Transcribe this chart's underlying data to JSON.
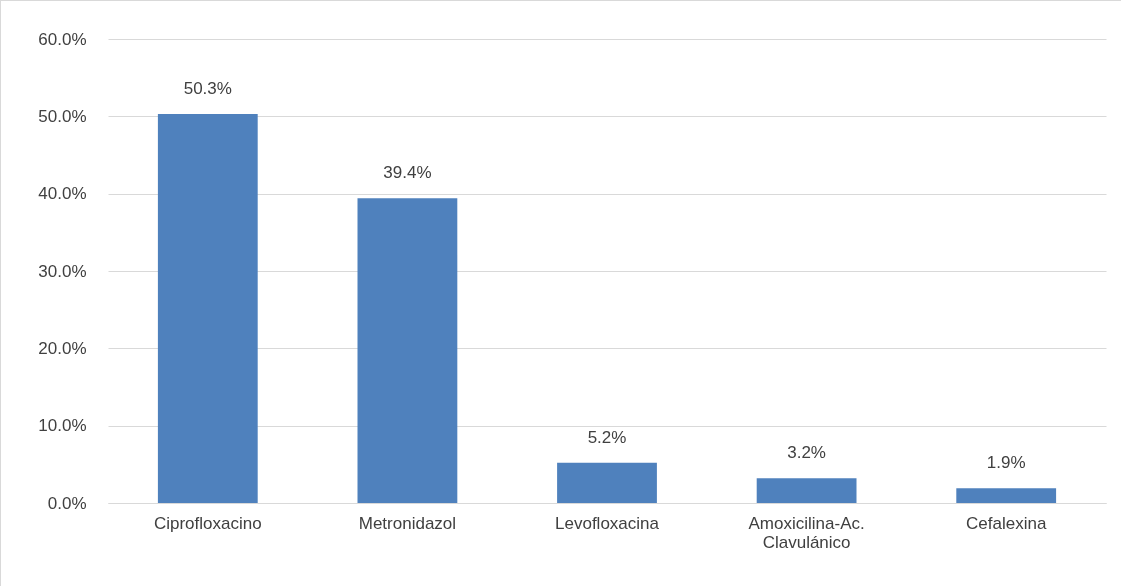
{
  "chart_data": {
    "type": "bar",
    "categories": [
      "Ciprofloxacino",
      "Metronidazol",
      "Levofloxacina",
      "Amoxicilina-Ac. Clavulánico",
      "Cefalexina"
    ],
    "values": [
      50.3,
      39.4,
      5.2,
      3.2,
      1.9
    ],
    "value_labels": [
      "50.3%",
      "39.4%",
      "5.2%",
      "3.2%",
      "1.9%"
    ],
    "color": "#4f81bd",
    "ylim": [
      0,
      60
    ],
    "yticks": [
      {
        "value": 0,
        "label": "0.0%"
      },
      {
        "value": 10,
        "label": "10.0%"
      },
      {
        "value": 20,
        "label": "20.0%"
      },
      {
        "value": 30,
        "label": "30.0%"
      },
      {
        "value": 40,
        "label": "40.0%"
      },
      {
        "value": 50,
        "label": "50.0%"
      },
      {
        "value": 60,
        "label": "60.0%"
      }
    ],
    "grid": "y"
  }
}
